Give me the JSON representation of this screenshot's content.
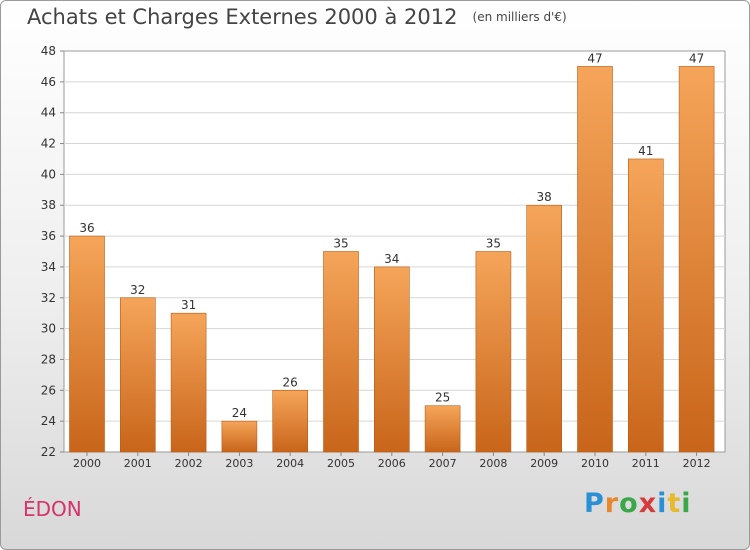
{
  "header": {
    "title": "Achats et Charges Externes 2000 à 2012",
    "unit": "(en milliers d'€)"
  },
  "location": {
    "name": "ÉDON"
  },
  "brand": {
    "logo_text": "Proxiti",
    "letters": [
      "P",
      "r",
      "o",
      "x",
      "i",
      "t",
      "i"
    ]
  },
  "colors": {
    "bar_top": "#f5a55a",
    "bar_bottom": "#c8651a",
    "title": "#444444",
    "location": "#d6336c"
  },
  "chart_data": {
    "type": "bar",
    "title": "Achats et Charges Externes 2000 à 2012",
    "subtitle": "(en milliers d'€)",
    "xlabel": "",
    "ylabel": "",
    "categories": [
      "2000",
      "2001",
      "2002",
      "2003",
      "2004",
      "2005",
      "2006",
      "2007",
      "2008",
      "2009",
      "2010",
      "2011",
      "2012"
    ],
    "values": [
      36,
      32,
      31,
      24,
      26,
      35,
      34,
      25,
      35,
      38,
      47,
      41,
      47
    ],
    "ylim": [
      22,
      48
    ],
    "yticks": [
      22,
      24,
      26,
      28,
      30,
      32,
      34,
      36,
      38,
      40,
      42,
      44,
      46,
      48
    ],
    "grid": true
  }
}
